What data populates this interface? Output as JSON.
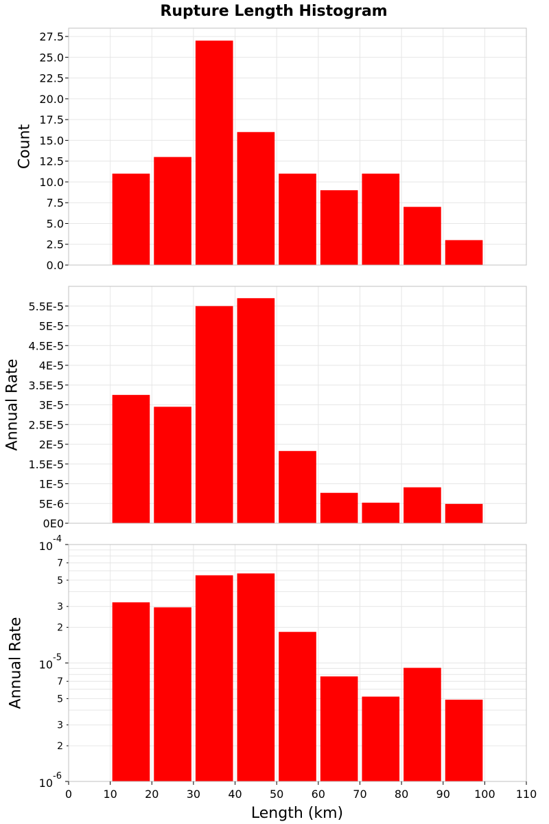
{
  "chart_data": {
    "type": "bar",
    "title": "Rupture Length Histogram",
    "xlabel": "Length (km)",
    "xlim": [
      0,
      110
    ],
    "x_ticks": [
      "0",
      "10",
      "20",
      "30",
      "40",
      "50",
      "60",
      "70",
      "80",
      "90",
      "100",
      "110"
    ],
    "bin_width": 10,
    "bins": [
      15,
      25,
      35,
      45,
      55,
      65,
      75,
      85,
      95
    ],
    "bar_color": "#ff0000",
    "grid": true,
    "panels": [
      {
        "ylabel": "Count",
        "scale": "linear",
        "ylim": [
          0,
          28.5
        ],
        "y_ticks": [
          {
            "v": 0,
            "label": "0.0"
          },
          {
            "v": 2.5,
            "label": "2.5"
          },
          {
            "v": 5,
            "label": "5.0"
          },
          {
            "v": 7.5,
            "label": "7.5"
          },
          {
            "v": 10,
            "label": "10.0"
          },
          {
            "v": 12.5,
            "label": "12.5"
          },
          {
            "v": 15,
            "label": "15.0"
          },
          {
            "v": 17.5,
            "label": "17.5"
          },
          {
            "v": 20,
            "label": "20.0"
          },
          {
            "v": 22.5,
            "label": "22.5"
          },
          {
            "v": 25,
            "label": "25.0"
          },
          {
            "v": 27.5,
            "label": "27.5"
          }
        ],
        "values": [
          11,
          13,
          27,
          16,
          11,
          9,
          11,
          7,
          3
        ]
      },
      {
        "ylabel": "Annual Rate",
        "scale": "linear",
        "ylim": [
          0,
          6e-05
        ],
        "y_ticks": [
          {
            "v": 0,
            "label": "0E0"
          },
          {
            "v": 5e-06,
            "label": "5E-6"
          },
          {
            "v": 1e-05,
            "label": "1E-5"
          },
          {
            "v": 1.5e-05,
            "label": "1.5E-5"
          },
          {
            "v": 2e-05,
            "label": "2E-5"
          },
          {
            "v": 2.5e-05,
            "label": "2.5E-5"
          },
          {
            "v": 3e-05,
            "label": "3E-5"
          },
          {
            "v": 3.5e-05,
            "label": "3.5E-5"
          },
          {
            "v": 4e-05,
            "label": "4E-5"
          },
          {
            "v": 4.5e-05,
            "label": "4.5E-5"
          },
          {
            "v": 5e-05,
            "label": "5E-5"
          },
          {
            "v": 5.5e-05,
            "label": "5.5E-5"
          }
        ],
        "values": [
          3.25e-05,
          2.95e-05,
          5.5e-05,
          5.7e-05,
          1.83e-05,
          7.7e-06,
          5.2e-06,
          9.1e-06,
          4.9e-06
        ]
      },
      {
        "ylabel": "Annual Rate",
        "scale": "log",
        "ylim": [
          1e-06,
          0.0001
        ],
        "major_ticks": [
          {
            "v": 0.0001,
            "base": "10",
            "exp": "-4"
          },
          {
            "v": 1e-05,
            "base": "10",
            "exp": "-5"
          },
          {
            "v": 1e-06,
            "base": "10",
            "exp": "-6"
          }
        ],
        "minor_labels": [
          {
            "v": 7e-05,
            "label": "7"
          },
          {
            "v": 5e-05,
            "label": "5"
          },
          {
            "v": 3e-05,
            "label": "3"
          },
          {
            "v": 2e-05,
            "label": "2"
          },
          {
            "v": 7e-06,
            "label": "7"
          },
          {
            "v": 5e-06,
            "label": "5"
          },
          {
            "v": 3e-06,
            "label": "3"
          },
          {
            "v": 2e-06,
            "label": "2"
          }
        ],
        "values": [
          3.25e-05,
          2.95e-05,
          5.5e-05,
          5.7e-05,
          1.83e-05,
          7.7e-06,
          5.2e-06,
          9.1e-06,
          4.9e-06
        ]
      }
    ]
  }
}
